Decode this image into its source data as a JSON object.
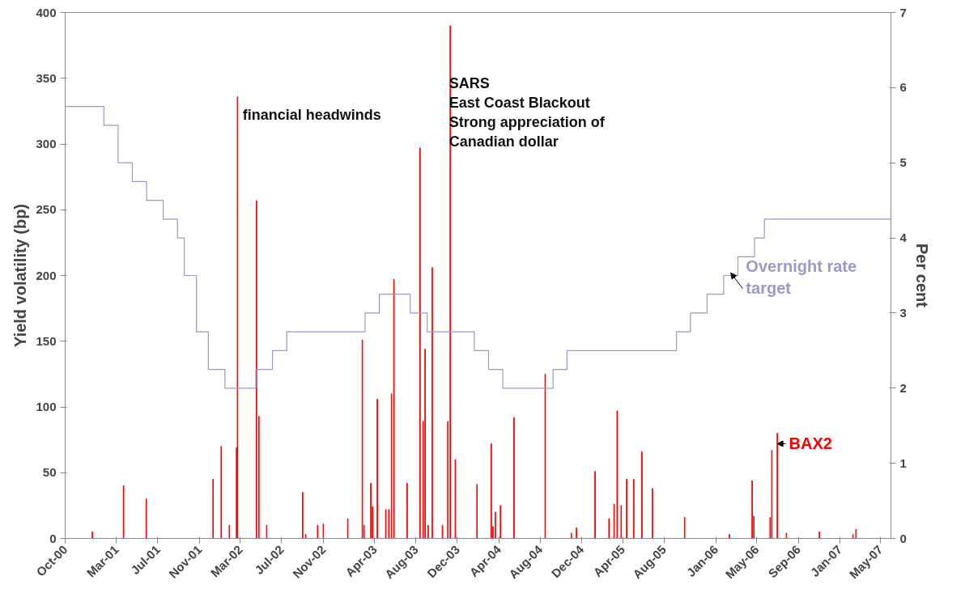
{
  "chart_data": {
    "type": "bar",
    "xlabel": null,
    "ylabel": "Yield volatility (bp)",
    "y2label": "Per cent",
    "annotations": [
      "financial headwinds",
      "SARS\nEast Coast Blackout\nStrong appreciation of\nCanadian dollar"
    ],
    "xlim": [
      "2000-10-01",
      "2007-06-01"
    ],
    "xticks": [
      {
        "value": "2000-10-01",
        "label": "Oct-00"
      },
      {
        "value": "2001-03-01",
        "label": "Mar-01"
      },
      {
        "value": "2001-07-01",
        "label": "Jul-01"
      },
      {
        "value": "2001-11-01",
        "label": "Nov-01"
      },
      {
        "value": "2002-03-01",
        "label": "Mar-02"
      },
      {
        "value": "2002-07-01",
        "label": "Jul-02"
      },
      {
        "value": "2002-11-01",
        "label": "Nov-02"
      },
      {
        "value": "2003-04-01",
        "label": "Apr-03"
      },
      {
        "value": "2003-08-01",
        "label": "Aug-03"
      },
      {
        "value": "2003-12-01",
        "label": "Dec-03"
      },
      {
        "value": "2004-04-01",
        "label": "Apr-04"
      },
      {
        "value": "2004-08-01",
        "label": "Aug-04"
      },
      {
        "value": "2004-12-01",
        "label": "Dec-04"
      },
      {
        "value": "2005-04-01",
        "label": "Apr-05"
      },
      {
        "value": "2005-08-01",
        "label": "Aug-05"
      },
      {
        "value": "2006-01-01",
        "label": "Jan-06"
      },
      {
        "value": "2006-05-01",
        "label": "May-06"
      },
      {
        "value": "2006-09-01",
        "label": "Sep-06"
      },
      {
        "value": "2007-01-01",
        "label": "Jan-07"
      },
      {
        "value": "2007-05-01",
        "label": "May-07"
      }
    ],
    "ylim": [
      0,
      400
    ],
    "yticks": [
      0,
      50,
      100,
      150,
      200,
      250,
      300,
      350,
      400
    ],
    "y2lim": [
      0,
      7
    ],
    "y2ticks": [
      0,
      1,
      2,
      3,
      4,
      5,
      6,
      7
    ],
    "grid": false,
    "series": [
      {
        "name": "BAX2",
        "color": "#ff0000",
        "x": [
          "2000-12-20",
          "2001-03-22",
          "2001-05-28",
          "2001-12-11",
          "2002-01-04",
          "2002-01-28",
          "2002-02-18",
          "2002-02-21",
          "2002-04-18",
          "2002-04-25",
          "2002-05-18",
          "2002-09-01",
          "2002-09-10",
          "2002-10-15",
          "2002-11-01",
          "2003-01-12",
          "2003-02-24",
          "2003-03-01",
          "2003-03-21",
          "2003-03-26",
          "2003-04-09",
          "2003-05-04",
          "2003-05-13",
          "2003-05-21",
          "2003-05-28",
          "2003-07-06",
          "2003-08-13",
          "2003-08-22",
          "2003-08-28",
          "2003-09-06",
          "2003-09-18",
          "2003-10-18",
          "2003-11-03",
          "2003-11-10",
          "2003-11-25",
          "2004-01-28",
          "2004-03-10",
          "2004-03-15",
          "2004-03-22",
          "2004-04-06",
          "2004-05-16",
          "2004-08-16",
          "2004-11-01",
          "2004-11-16",
          "2005-01-10",
          "2005-02-20",
          "2005-03-07",
          "2005-03-16",
          "2005-03-28",
          "2005-04-13",
          "2005-05-04",
          "2005-05-28",
          "2005-06-28",
          "2005-10-01",
          "2006-02-10",
          "2006-04-18",
          "2006-04-23",
          "2006-06-10",
          "2006-06-15",
          "2006-07-01",
          "2006-07-28",
          "2006-11-02",
          "2007-02-09",
          "2007-02-18"
        ],
        "values": [
          5,
          40,
          30,
          45,
          70,
          10,
          69,
          336,
          257,
          93,
          10,
          35,
          3,
          10,
          11,
          15,
          151,
          10,
          42,
          24,
          106,
          22,
          22,
          110,
          197,
          42,
          297,
          89,
          144,
          10,
          206,
          10,
          89,
          390,
          60,
          41,
          72,
          9,
          20,
          25,
          92,
          125,
          4,
          8,
          51,
          15,
          26,
          97,
          25,
          45,
          45,
          66,
          38,
          16,
          3,
          44,
          17,
          16,
          67,
          80,
          4,
          5,
          3,
          7
        ]
      },
      {
        "name": "Overnight rate target",
        "type": "step",
        "axis": "y2",
        "color": "#9999cc",
        "x": [
          "2000-10-01",
          "2001-01-23",
          "2001-03-06",
          "2001-04-17",
          "2001-05-29",
          "2001-07-17",
          "2001-08-28",
          "2001-09-17",
          "2001-10-23",
          "2001-11-27",
          "2002-01-15",
          "2002-04-16",
          "2002-06-04",
          "2002-07-16",
          "2003-03-04",
          "2003-04-15",
          "2003-07-15",
          "2003-09-03",
          "2004-01-20",
          "2004-03-02",
          "2004-04-13",
          "2004-09-08",
          "2004-10-19",
          "2005-09-07",
          "2005-10-18",
          "2005-12-06",
          "2006-01-24",
          "2006-03-07",
          "2006-04-25",
          "2006-05-24",
          "2007-06-01"
        ],
        "values": [
          5.75,
          5.5,
          5.0,
          4.75,
          4.5,
          4.25,
          4.0,
          3.5,
          2.75,
          2.25,
          2.0,
          2.25,
          2.5,
          2.75,
          3.0,
          3.25,
          3.0,
          2.75,
          2.5,
          2.25,
          2.0,
          2.25,
          2.5,
          2.75,
          3.0,
          3.25,
          3.5,
          3.75,
          4.0,
          4.25,
          4.25
        ]
      }
    ]
  }
}
